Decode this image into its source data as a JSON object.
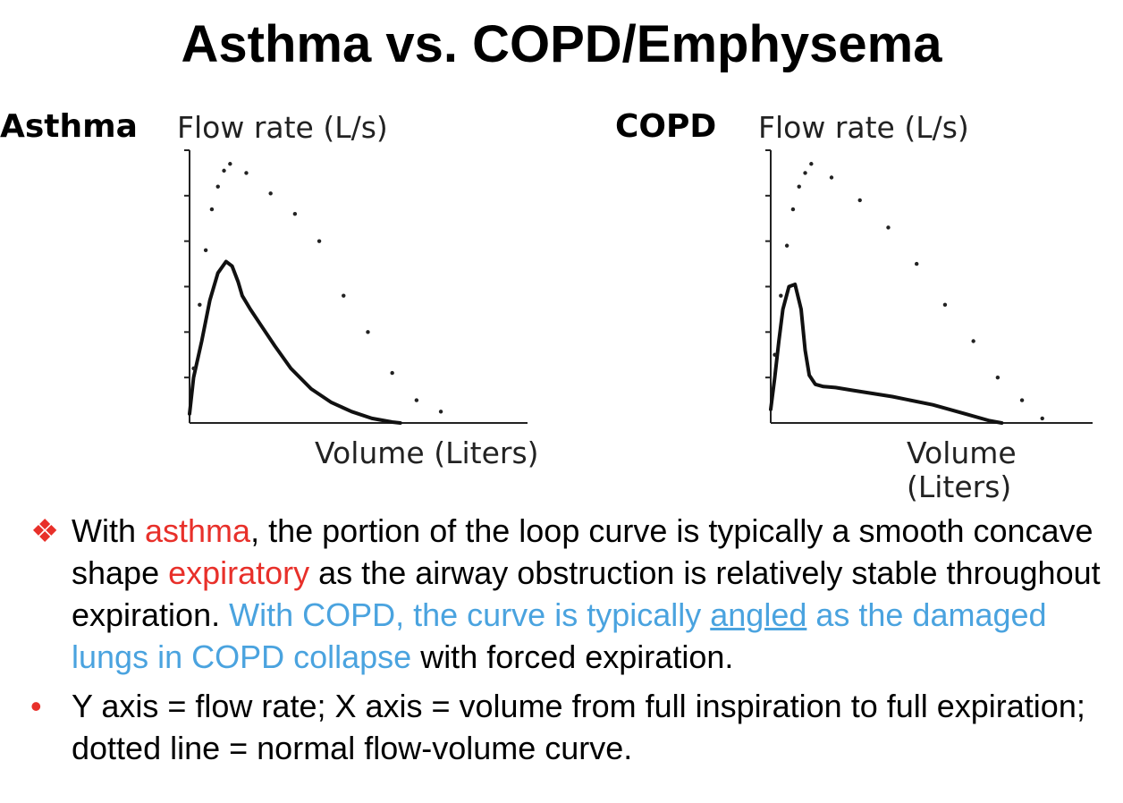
{
  "title": "Asthma vs. COPD/Emphysema",
  "chart_data": [
    {
      "type": "line",
      "label": "Asthma",
      "ylabel": "Flow rate (L/s)",
      "xlabel": "Volume (Liters)",
      "xlim": [
        0,
        7.5
      ],
      "ylim": [
        0,
        6
      ],
      "yticks": [
        1,
        2,
        3,
        4,
        5,
        6
      ],
      "series": [
        {
          "name": "Asthma flow-volume curve",
          "style": "solid",
          "x": [
            0,
            0.1,
            0.3,
            0.5,
            0.7,
            0.9,
            1.05,
            1.2,
            1.3,
            1.5,
            1.8,
            2.1,
            2.5,
            3.0,
            3.5,
            4.0,
            4.5,
            5.0,
            5.2
          ],
          "y": [
            0.2,
            1.0,
            1.8,
            2.7,
            3.3,
            3.55,
            3.45,
            3.1,
            2.8,
            2.5,
            2.1,
            1.7,
            1.2,
            0.75,
            0.45,
            0.25,
            0.1,
            0.02,
            0
          ]
        },
        {
          "name": "Normal flow-volume curve",
          "style": "dotted",
          "x": [
            0.1,
            0.25,
            0.4,
            0.55,
            0.7,
            0.85,
            1.0,
            1.4,
            2.0,
            2.6,
            3.2,
            3.8,
            4.4,
            5.0,
            5.6,
            6.2
          ],
          "y": [
            1.2,
            2.6,
            3.8,
            4.7,
            5.2,
            5.55,
            5.7,
            5.5,
            5.05,
            4.6,
            4.0,
            2.8,
            2.0,
            1.1,
            0.5,
            0.25
          ]
        }
      ]
    },
    {
      "type": "line",
      "label": "COPD",
      "ylabel": "Flow rate (L/s)",
      "xlabel": "Volume (Liters)",
      "xlim": [
        0,
        7.5
      ],
      "ylim": [
        0,
        6
      ],
      "yticks": [
        1,
        2,
        3,
        4,
        5,
        6
      ],
      "series": [
        {
          "name": "COPD flow-volume curve",
          "style": "solid",
          "x": [
            0,
            0.1,
            0.2,
            0.3,
            0.45,
            0.6,
            0.75,
            0.85,
            0.95,
            1.1,
            1.3,
            1.6,
            2.0,
            3.0,
            4.0,
            4.8,
            5.4,
            5.7
          ],
          "y": [
            0.3,
            1.0,
            1.8,
            2.5,
            3.0,
            3.05,
            2.5,
            1.6,
            1.05,
            0.85,
            0.8,
            0.78,
            0.72,
            0.58,
            0.4,
            0.2,
            0.05,
            0
          ]
        },
        {
          "name": "Normal flow-volume curve",
          "style": "dotted",
          "x": [
            0.1,
            0.25,
            0.4,
            0.55,
            0.7,
            0.85,
            1.0,
            1.5,
            2.2,
            2.9,
            3.6,
            4.3,
            5.0,
            5.6,
            6.2,
            6.7
          ],
          "y": [
            1.5,
            2.8,
            3.9,
            4.7,
            5.2,
            5.5,
            5.7,
            5.4,
            4.9,
            4.3,
            3.5,
            2.6,
            1.8,
            1.0,
            0.5,
            0.1
          ]
        }
      ]
    }
  ],
  "bullets": [
    {
      "marker": "❖",
      "t1": "With ",
      "t2": "asthma",
      "t3": ", the portion of the loop curve is typically a smooth concave shape ",
      "t4": "expiratory",
      "t5": " as the airway obstruction is relatively stable throughout expiration. ",
      "t6": "With COPD, the curve is typically ",
      "t7": "angled",
      "t8": " as the damaged lungs in COPD collapse",
      "t9": " with forced expiration."
    },
    {
      "marker": "•",
      "text": "Y axis = flow rate; X axis = volume from full inspiration to full expiration; dotted line = normal flow-volume curve."
    }
  ]
}
